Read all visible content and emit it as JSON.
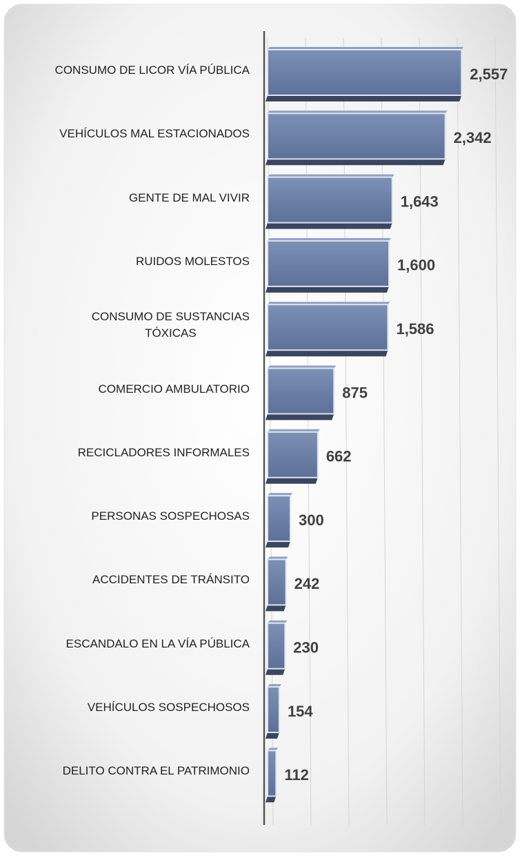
{
  "chart_data": {
    "type": "barh",
    "categories": [
      "CONSUMO DE LICOR VÍA PÚBLICA",
      "VEHÍCULOS MAL ESTACIONADOS",
      "GENTE DE MAL VIVIR",
      "RUIDOS MOLESTOS ",
      "CONSUMO DE SUSTANCIAS\nTÓXICAS",
      "COMERCIO AMBULATORIO",
      "RECICLADORES INFORMALES",
      "PERSONAS SOSPECHOSAS",
      "ACCIDENTES DE TRÁNSITO",
      "ESCANDALO EN LA VÍA PÚBLICA",
      "VEHÍCULOS SOSPECHOSOS",
      "DELITO CONTRA EL PATRIMONIO"
    ],
    "values": [
      2557,
      2342,
      1643,
      1600,
      1586,
      875,
      662,
      300,
      242,
      230,
      154,
      112
    ],
    "value_labels": [
      "2,557",
      "2,342",
      "1,643",
      "1,600",
      "1,586",
      "875",
      "662",
      "300",
      "242",
      "230",
      "154",
      "112"
    ],
    "color": "#6a7fa6",
    "xlim": [
      0,
      3000
    ],
    "xticks": [
      0,
      500,
      1000,
      1500,
      2000,
      2500,
      3000
    ],
    "grid": true
  }
}
